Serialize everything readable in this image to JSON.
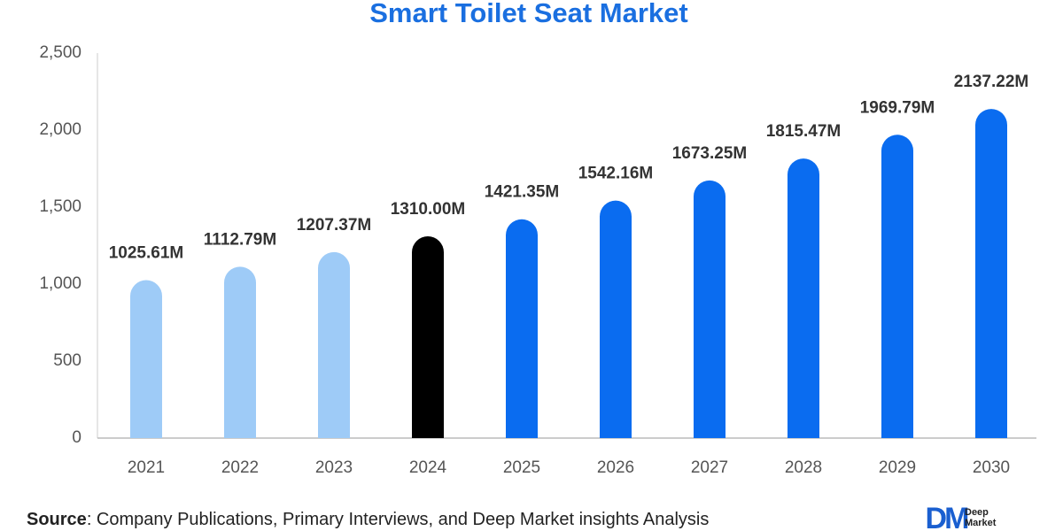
{
  "chart_data": {
    "type": "bar",
    "title": "Smart Toilet Seat Market",
    "categories": [
      "2021",
      "2022",
      "2023",
      "2024",
      "2025",
      "2026",
      "2027",
      "2028",
      "2029",
      "2030"
    ],
    "values": [
      1025.61,
      1112.79,
      1207.37,
      1310.0,
      1421.35,
      1542.16,
      1673.25,
      1815.47,
      1969.79,
      2137.22
    ],
    "value_labels": [
      "1025.61M",
      "1112.79M",
      "1207.37M",
      "1310.00M",
      "1421.35M",
      "1542.16M",
      "1673.25M",
      "1815.47M",
      "1969.79M",
      "2137.22M"
    ],
    "colors": [
      "#9ecbf7",
      "#9ecbf7",
      "#9ecbf7",
      "#000000",
      "#0a6cf0",
      "#0a6cf0",
      "#0a6cf0",
      "#0a6cf0",
      "#0a6cf0",
      "#0a6cf0"
    ],
    "ylim": [
      0,
      2500
    ],
    "yticks": [
      0,
      500,
      {
        "value": 1000,
        "label": "1,000"
      },
      {
        "value": 1500,
        "label": "1,500"
      },
      {
        "value": 2000,
        "label": "2,000"
      },
      {
        "value": 2500,
        "label": "2,500"
      }
    ],
    "grid": false,
    "source_label": "Source",
    "source_text": ": Company Publications, Primary Interviews, and Deep Market insights Analysis",
    "logo": {
      "mark": "DM",
      "lines": [
        "Deep",
        "Market"
      ]
    }
  }
}
